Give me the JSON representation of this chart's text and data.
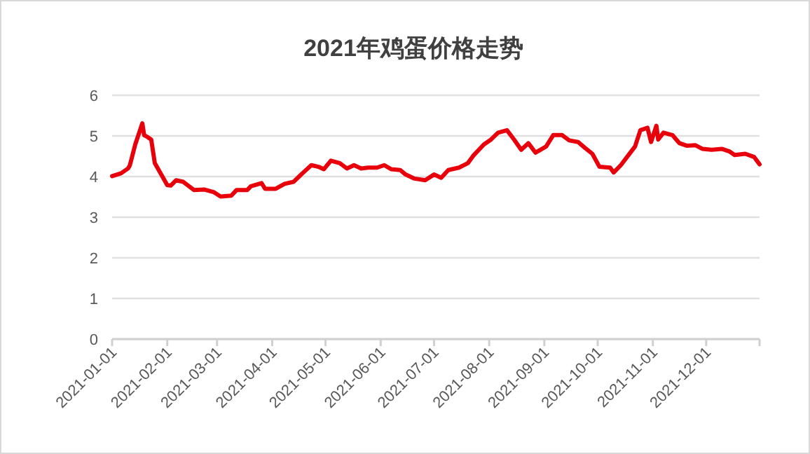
{
  "chart_data": {
    "type": "line",
    "title": "2021年鸡蛋价格走势",
    "x": [
      "2021-01-01",
      "2021-01-06",
      "2021-01-10",
      "2021-01-11",
      "2021-01-14",
      "2021-01-18",
      "2021-01-19",
      "2021-01-21",
      "2021-01-23",
      "2021-01-25",
      "2021-01-28",
      "2021-02-01",
      "2021-02-03",
      "2021-02-06",
      "2021-02-10",
      "2021-02-16",
      "2021-02-22",
      "2021-02-27",
      "2021-03-03",
      "2021-03-09",
      "2021-03-12",
      "2021-03-18",
      "2021-03-20",
      "2021-03-26",
      "2021-03-28",
      "2021-04-03",
      "2021-04-08",
      "2021-04-13",
      "2021-04-18",
      "2021-04-23",
      "2021-04-27",
      "2021-04-30",
      "2021-05-04",
      "2021-05-09",
      "2021-05-13",
      "2021-05-17",
      "2021-05-21",
      "2021-05-25",
      "2021-05-30",
      "2021-06-03",
      "2021-06-07",
      "2021-06-12",
      "2021-06-15",
      "2021-06-20",
      "2021-06-26",
      "2021-07-01",
      "2021-07-05",
      "2021-07-09",
      "2021-07-15",
      "2021-07-20",
      "2021-07-23",
      "2021-07-29",
      "2021-08-02",
      "2021-08-06",
      "2021-08-11",
      "2021-08-15",
      "2021-08-19",
      "2021-08-23",
      "2021-08-27",
      "2021-09-02",
      "2021-09-06",
      "2021-09-11",
      "2021-09-15",
      "2021-09-20",
      "2021-09-24",
      "2021-09-28",
      "2021-10-02",
      "2021-10-08",
      "2021-10-10",
      "2021-10-14",
      "2021-10-18",
      "2021-10-22",
      "2021-10-25",
      "2021-10-29",
      "2021-10-31",
      "2021-11-03",
      "2021-11-04",
      "2021-11-07",
      "2021-11-12",
      "2021-11-16",
      "2021-11-20",
      "2021-11-25",
      "2021-11-29",
      "2021-12-04",
      "2021-12-10",
      "2021-12-14",
      "2021-12-17",
      "2021-12-23",
      "2021-12-28",
      "2021-12-31"
    ],
    "series": [
      {
        "color": "#e8000b",
        "values": [
          4.01,
          4.08,
          4.2,
          4.28,
          4.79,
          5.31,
          5.02,
          4.97,
          4.91,
          4.33,
          4.1,
          3.79,
          3.78,
          3.91,
          3.87,
          3.67,
          3.68,
          3.62,
          3.51,
          3.53,
          3.67,
          3.67,
          3.76,
          3.84,
          3.7,
          3.7,
          3.82,
          3.87,
          4.08,
          4.28,
          4.24,
          4.18,
          4.39,
          4.33,
          4.2,
          4.28,
          4.2,
          4.22,
          4.22,
          4.28,
          4.18,
          4.16,
          4.05,
          3.95,
          3.91,
          4.05,
          3.97,
          4.16,
          4.22,
          4.33,
          4.51,
          4.79,
          4.91,
          5.08,
          5.14,
          4.91,
          4.66,
          4.82,
          4.59,
          4.74,
          5.02,
          5.02,
          4.89,
          4.85,
          4.7,
          4.56,
          4.24,
          4.22,
          4.1,
          4.28,
          4.51,
          4.74,
          5.14,
          5.2,
          4.85,
          5.25,
          4.91,
          5.08,
          5.02,
          4.82,
          4.76,
          4.77,
          4.68,
          4.66,
          4.68,
          4.62,
          4.53,
          4.56,
          4.48,
          4.3
        ]
      }
    ],
    "xlim": [
      "2021-01-01",
      "2021-12-31"
    ],
    "xticks": [
      {
        "value": "2021-01-01",
        "label": "2021-01-01"
      },
      {
        "value": "2021-02-01",
        "label": "2021-02-01"
      },
      {
        "value": "2021-03-01",
        "label": "2021-03-01"
      },
      {
        "value": "2021-04-01",
        "label": "2021-04-01"
      },
      {
        "value": "2021-05-01",
        "label": "2021-05-01"
      },
      {
        "value": "2021-06-01",
        "label": "2021-06-01"
      },
      {
        "value": "2021-07-01",
        "label": "2021-07-01"
      },
      {
        "value": "2021-08-01",
        "label": "2021-08-01"
      },
      {
        "value": "2021-09-01",
        "label": "2021-09-01"
      },
      {
        "value": "2021-10-01",
        "label": "2021-10-01"
      },
      {
        "value": "2021-11-01",
        "label": "2021-11-01"
      },
      {
        "value": "2021-12-01",
        "label": "2021-12-01"
      },
      {
        "value": "2021-12-31",
        "label": null
      }
    ],
    "ylim": [
      0,
      6
    ],
    "yticks": [
      0,
      1,
      2,
      3,
      4,
      5,
      6
    ],
    "grid": "y",
    "marker": "none",
    "line_style": "solid"
  }
}
